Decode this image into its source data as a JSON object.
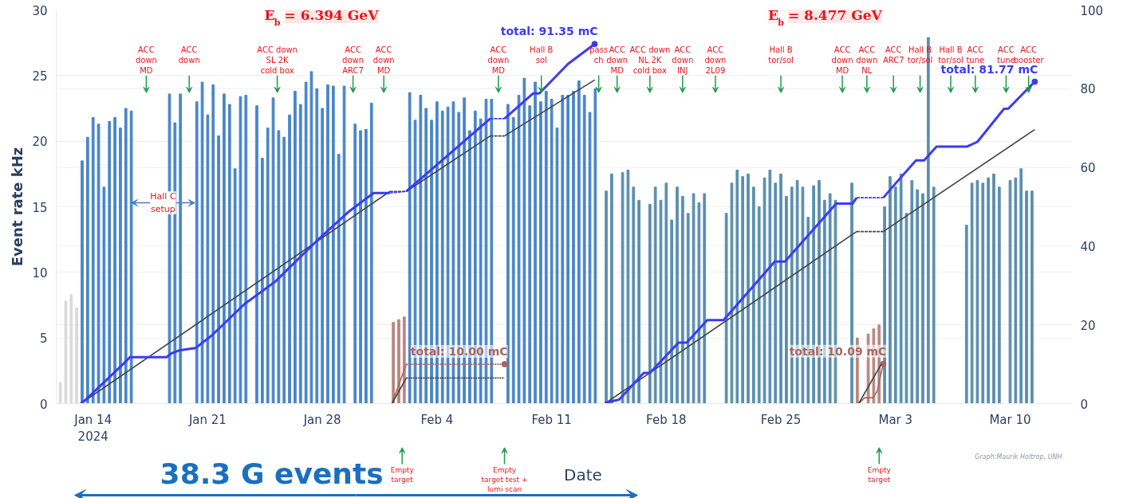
{
  "chart_data": {
    "type": "bar",
    "xlabel": "Date",
    "ylabel": "Event rate kHz",
    "xlim": [
      "2024-01-11T18:00",
      "2024-03-13T18:00"
    ],
    "xticks": [
      {
        "value": "2024-01-14",
        "label": "Jan 14\n2024"
      },
      {
        "value": "2024-01-21",
        "label": "Jan 21"
      },
      {
        "value": "2024-01-28",
        "label": "Jan 28"
      },
      {
        "value": "2024-02-04",
        "label": "Feb 4"
      },
      {
        "value": "2024-02-11",
        "label": "Feb 11"
      },
      {
        "value": "2024-02-18",
        "label": "Feb 18"
      },
      {
        "value": "2024-02-25",
        "label": "Feb 25"
      },
      {
        "value": "2024-03-03",
        "label": "Mar 3"
      },
      {
        "value": "2024-03-10",
        "label": "Mar 10"
      }
    ],
    "ylim": [
      0,
      30
    ],
    "yticks": [
      0,
      5,
      10,
      15,
      20,
      25,
      30
    ],
    "y2lim": [
      0,
      100
    ],
    "y2ticks": [
      0,
      20,
      40,
      60,
      80,
      100
    ],
    "grid": "y",
    "series": [
      {
        "color": "#d9d9d9",
        "x": [
          "2024-01-12T00:00",
          "2024-01-12T08:00",
          "2024-01-12T16:00",
          "2024-01-13T00:00"
        ],
        "values": [
          1.6,
          7.8,
          8.3,
          7.3
        ]
      },
      {
        "color": "#4a86c8",
        "x": [
          "2024-01-13T08:00",
          "2024-01-13T16:00",
          "2024-01-14T00:00",
          "2024-01-14T08:00",
          "2024-01-14T16:00",
          "2024-01-15T00:00",
          "2024-01-15T08:00",
          "2024-01-15T16:00",
          "2024-01-16T00:00",
          "2024-01-16T08:00",
          "2024-01-18T16:00",
          "2024-01-19T00:00",
          "2024-01-19T08:00",
          "2024-01-20T08:00",
          "2024-01-20T16:00",
          "2024-01-21T00:00",
          "2024-01-21T08:00",
          "2024-01-21T16:00",
          "2024-01-22T00:00",
          "2024-01-22T08:00",
          "2024-01-22T16:00",
          "2024-01-23T00:00",
          "2024-01-23T08:00",
          "2024-01-24T00:00",
          "2024-01-24T08:00",
          "2024-01-24T16:00",
          "2024-01-25T00:00",
          "2024-01-25T08:00",
          "2024-01-25T16:00",
          "2024-01-26T00:00",
          "2024-01-26T08:00",
          "2024-01-26T16:00",
          "2024-01-27T00:00",
          "2024-01-27T08:00",
          "2024-01-27T16:00",
          "2024-01-28T00:00",
          "2024-01-28T08:00",
          "2024-01-28T16:00",
          "2024-01-29T00:00",
          "2024-01-29T08:00",
          "2024-01-30T00:00",
          "2024-01-30T08:00",
          "2024-01-30T16:00",
          "2024-01-31T00:00",
          "2024-02-02T08:00",
          "2024-02-02T16:00",
          "2024-02-03T00:00",
          "2024-02-03T08:00",
          "2024-02-03T16:00",
          "2024-02-04T00:00",
          "2024-02-04T08:00",
          "2024-02-04T16:00",
          "2024-02-05T00:00",
          "2024-02-05T08:00",
          "2024-02-05T16:00",
          "2024-02-06T00:00",
          "2024-02-06T08:00",
          "2024-02-06T16:00",
          "2024-02-07T00:00",
          "2024-02-07T08:00",
          "2024-02-08T08:00",
          "2024-02-08T16:00",
          "2024-02-09T00:00",
          "2024-02-09T08:00",
          "2024-02-09T16:00",
          "2024-02-10T00:00",
          "2024-02-10T08:00",
          "2024-02-10T16:00",
          "2024-02-11T00:00",
          "2024-02-11T08:00",
          "2024-02-11T16:00",
          "2024-02-12T00:00",
          "2024-02-12T08:00",
          "2024-02-12T16:00",
          "2024-02-13T00:00",
          "2024-02-13T08:00",
          "2024-02-13T16:00"
        ],
        "values": [
          18.5,
          20.3,
          21.8,
          21.3,
          16.5,
          21.5,
          21.8,
          21.0,
          22.5,
          22.3,
          23.6,
          21.4,
          23.6,
          23.0,
          24.5,
          22.0,
          24.3,
          20.4,
          23.6,
          22.8,
          17.9,
          23.4,
          23.5,
          22.7,
          18.7,
          21.0,
          23.3,
          20.8,
          20.3,
          22.0,
          23.8,
          22.8,
          24.5,
          25.3,
          24.0,
          22.5,
          24.3,
          24.2,
          19.0,
          24.2,
          21.3,
          20.8,
          20.9,
          22.9,
          23.7,
          21.6,
          23.5,
          22.5,
          21.6,
          23.0,
          22.3,
          22.6,
          23.0,
          22.2,
          23.3,
          20.8,
          22.3,
          21.7,
          23.2,
          23.2,
          22.8,
          21.8,
          23.5,
          24.8,
          22.7,
          24.5,
          23.0,
          23.8,
          23.2,
          21.0,
          23.5,
          23.5,
          23.8,
          24.6,
          23.5,
          22.2,
          24.0
        ]
      },
      {
        "color": "#b98780",
        "x": [
          "2024-02-01T08:00",
          "2024-02-01T16:00",
          "2024-02-02T00:00",
          "2024-02-29T16:00",
          "2024-03-01T08:00",
          "2024-03-01T16:00",
          "2024-03-02T00:00"
        ],
        "values": [
          6.2,
          6.4,
          6.6,
          5.0,
          5.3,
          5.7,
          6.0
        ]
      },
      {
        "color": "#5b8fb0",
        "x": [
          "2024-02-14T08:00",
          "2024-02-14T16:00",
          "2024-02-15T08:00",
          "2024-02-15T16:00",
          "2024-02-16T00:00",
          "2024-02-16T08:00",
          "2024-02-17T00:00",
          "2024-02-17T08:00",
          "2024-02-17T16:00",
          "2024-02-18T00:00",
          "2024-02-18T08:00",
          "2024-02-18T16:00",
          "2024-02-19T00:00",
          "2024-02-19T08:00",
          "2024-02-19T16:00",
          "2024-02-20T00:00",
          "2024-02-20T08:00",
          "2024-02-21T16:00",
          "2024-02-22T00:00",
          "2024-02-22T08:00",
          "2024-02-22T16:00",
          "2024-02-23T00:00",
          "2024-02-23T08:00",
          "2024-02-23T16:00",
          "2024-02-24T00:00",
          "2024-02-24T08:00",
          "2024-02-24T16:00",
          "2024-02-25T00:00",
          "2024-02-25T08:00",
          "2024-02-25T16:00",
          "2024-02-26T00:00",
          "2024-02-26T08:00",
          "2024-02-26T16:00",
          "2024-02-27T00:00",
          "2024-02-27T08:00",
          "2024-02-27T16:00",
          "2024-02-28T00:00",
          "2024-02-28T08:00",
          "2024-02-29T08:00",
          "2024-03-02T08:00",
          "2024-03-02T16:00",
          "2024-03-03T00:00",
          "2024-03-03T08:00",
          "2024-03-03T16:00",
          "2024-03-04T00:00",
          "2024-03-04T08:00",
          "2024-03-04T16:00",
          "2024-03-05T00:00",
          "2024-03-05T08:00",
          "2024-03-07T08:00",
          "2024-03-07T16:00",
          "2024-03-08T00:00",
          "2024-03-08T08:00",
          "2024-03-08T16:00",
          "2024-03-09T00:00",
          "2024-03-09T08:00",
          "2024-03-10T00:00",
          "2024-03-10T08:00",
          "2024-03-10T16:00",
          "2024-03-11T00:00",
          "2024-03-11T08:00"
        ],
        "values": [
          16.2,
          17.5,
          17.6,
          17.8,
          16.5,
          15.5,
          15.2,
          16.5,
          15.5,
          16.8,
          14.0,
          16.5,
          15.8,
          14.5,
          16.0,
          15.3,
          16.0,
          14.5,
          16.8,
          17.8,
          17.3,
          17.5,
          16.5,
          15.0,
          17.2,
          17.8,
          16.8,
          17.5,
          15.8,
          16.5,
          17.0,
          16.5,
          14.2,
          16.6,
          17.0,
          15.5,
          16.0,
          15.5,
          16.8,
          15.0,
          17.3,
          16.5,
          17.5,
          14.5,
          17.0,
          16.3,
          16.0,
          27.9,
          16.5,
          13.6,
          16.8,
          17.0,
          16.8,
          17.2,
          17.5,
          16.5,
          17.0,
          17.2,
          17.9,
          16.2,
          16.2
        ]
      },
      {
        "type": "line",
        "axis": "y2",
        "color": "#444444",
        "line_style": "solid",
        "x": [
          "2024-01-13T06:00",
          "2024-02-01T03:00"
        ],
        "values": [
          0,
          53.9
        ]
      },
      {
        "type": "line",
        "axis": "y2",
        "color": "#444444",
        "line_style": "solid",
        "x": [
          "2024-02-02T03:00",
          "2024-02-07T06:00"
        ],
        "values": [
          53.9,
          68.0
        ]
      },
      {
        "type": "line",
        "axis": "y2",
        "color": "#444444",
        "line_style": "solid",
        "x": [
          "2024-02-08T03:00",
          "2024-02-13T15:00"
        ],
        "values": [
          68.0,
          82.2
        ]
      },
      {
        "type": "line",
        "axis": "y2",
        "color": "#3b3bf5",
        "line_style": "solid",
        "x": [
          "2024-01-13T06:00",
          "2024-01-13T12:00",
          "2024-01-15T21:00",
          "2024-01-16T06:00",
          "2024-01-18T12:00",
          "2024-01-18T18:00",
          "2024-01-19T06:00",
          "2024-01-20T06:00",
          "2024-01-21T06:00",
          "2024-01-23T06:00",
          "2024-01-25T03:00",
          "2024-01-27T15:00",
          "2024-01-29T15:00",
          "2024-01-31T03:00",
          "2024-02-01T03:00"
        ],
        "values": [
          0,
          0.8,
          10.2,
          11.8,
          11.8,
          12.7,
          13.5,
          14.1,
          17.3,
          25.3,
          31.0,
          41.2,
          48.8,
          53.5,
          53.5
        ]
      },
      {
        "type": "line",
        "axis": "y2",
        "color": "#3b3bf5",
        "line_style": "dashed",
        "x": [
          "2024-02-01T03:00",
          "2024-02-02T03:00"
        ],
        "values": [
          53.5,
          53.9
        ]
      },
      {
        "type": "line",
        "axis": "y2",
        "color": "#3b3bf5",
        "line_style": "solid",
        "x": [
          "2024-02-02T03:00",
          "2024-02-07T06:00"
        ],
        "values": [
          53.9,
          72.4
        ]
      },
      {
        "type": "line",
        "axis": "y2",
        "color": "#3b3bf5",
        "line_style": "dashed",
        "x": [
          "2024-02-07T06:00",
          "2024-02-08T03:00"
        ],
        "values": [
          72.4,
          72.4
        ]
      },
      {
        "type": "line",
        "axis": "y2",
        "color": "#3b3bf5",
        "line_style": "solid",
        "x": [
          "2024-02-08T03:00",
          "2024-02-09T21:00",
          "2024-02-10T06:00",
          "2024-02-12T00:00",
          "2024-02-13T15:00"
        ],
        "values": [
          72.4,
          78.8,
          78.8,
          86.3,
          91.35
        ],
        "value_labels": [
          null,
          null,
          null,
          null,
          "total: 91.35 mC"
        ]
      },
      {
        "type": "line",
        "axis": "y2",
        "color": "#444444",
        "line_style": "dashed",
        "x": [
          "2024-02-01T03:00",
          "2024-02-02T03:00"
        ],
        "values": [
          53.9,
          53.9
        ]
      },
      {
        "type": "line",
        "axis": "y2",
        "color": "#444444",
        "line_style": "dashed",
        "x": [
          "2024-02-07T06:00",
          "2024-02-08T03:00"
        ],
        "values": [
          68.0,
          68.0
        ]
      },
      {
        "type": "line",
        "axis": "y2",
        "color": "#444444",
        "line_style": "solid",
        "x": [
          "2024-02-14T06:00",
          "2024-02-29T15:00"
        ],
        "values": [
          0,
          43.7
        ]
      },
      {
        "type": "line",
        "axis": "y2",
        "color": "#444444",
        "line_style": "dashed",
        "x": [
          "2024-02-29T15:00",
          "2024-03-02T06:00"
        ],
        "values": [
          43.7,
          43.7
        ]
      },
      {
        "type": "line",
        "axis": "y2",
        "color": "#444444",
        "line_style": "solid",
        "x": [
          "2024-03-02T06:00",
          "2024-03-11T12:00"
        ],
        "values": [
          43.7,
          69.6
        ]
      },
      {
        "type": "line",
        "axis": "y2",
        "color": "#3b3bf5",
        "line_style": "solid",
        "x": [
          "2024-02-14T06:00",
          "2024-02-15T03:00",
          "2024-02-16T15:00",
          "2024-02-17T00:00",
          "2024-02-18T18:00",
          "2024-02-19T06:00",
          "2024-02-20T12:00",
          "2024-02-21T12:00",
          "2024-02-24T15:00",
          "2024-02-25T06:00",
          "2024-02-28T09:00",
          "2024-02-29T09:00",
          "2024-02-29T15:00"
        ],
        "values": [
          0.2,
          1.0,
          7.8,
          7.8,
          15.5,
          15.5,
          21.2,
          21.2,
          36.1,
          36.1,
          50.8,
          50.8,
          52.3
        ]
      },
      {
        "type": "line",
        "axis": "y2",
        "color": "#3b3bf5",
        "line_style": "dashed",
        "x": [
          "2024-02-29T15:00",
          "2024-03-02T06:00"
        ],
        "values": [
          52.3,
          52.3
        ]
      },
      {
        "type": "line",
        "axis": "y2",
        "color": "#3b3bf5",
        "line_style": "solid",
        "x": [
          "2024-03-02T06:00",
          "2024-03-03T03:00",
          "2024-03-04T06:00",
          "2024-03-04T18:00",
          "2024-03-05T12:00",
          "2024-03-07T09:00",
          "2024-03-08T00:00",
          "2024-03-09T15:00",
          "2024-03-09T21:00",
          "2024-03-11T12:00"
        ],
        "values": [
          52.3,
          56.5,
          61.8,
          61.8,
          65.3,
          65.3,
          66.5,
          74.9,
          74.9,
          81.77
        ],
        "value_labels": [
          null,
          null,
          null,
          null,
          null,
          null,
          null,
          null,
          null,
          "total: 81.77 mC"
        ]
      },
      {
        "type": "line",
        "axis": "y2",
        "color": "#a8655f",
        "line_style": "solid",
        "x": [
          "2024-02-01T06:00",
          "2024-02-02T03:00"
        ],
        "values": [
          0,
          10.0
        ]
      },
      {
        "type": "line",
        "axis": "y2",
        "color": "#a8655f",
        "line_style": "dotted",
        "x": [
          "2024-02-02T03:00",
          "2024-02-08T03:00"
        ],
        "values": [
          10.0,
          10.0
        ],
        "value_labels": [
          null,
          "total: 10.00 mC"
        ]
      },
      {
        "type": "line",
        "axis": "y2",
        "color": "#444444",
        "line_style": "solid",
        "x": [
          "2024-02-01T06:00",
          "2024-02-02T03:00"
        ],
        "values": [
          0,
          6.5
        ]
      },
      {
        "type": "line",
        "axis": "y2",
        "color": "#444444",
        "line_style": "dotted",
        "x": [
          "2024-02-02T03:00",
          "2024-02-08T03:00"
        ],
        "values": [
          6.5,
          6.5
        ]
      },
      {
        "type": "line",
        "axis": "y2",
        "color": "#a8655f",
        "line_style": "solid",
        "x": [
          "2024-02-29T18:00",
          "2024-03-01T03:00",
          "2024-03-01T15:00",
          "2024-03-01T21:00",
          "2024-03-02T06:00"
        ],
        "values": [
          0,
          1.5,
          1.5,
          3.1,
          10.09
        ],
        "value_labels": [
          null,
          null,
          null,
          null,
          "total: 10.09 mC"
        ]
      },
      {
        "type": "line",
        "axis": "y2",
        "color": "#444444",
        "line_style": "solid",
        "x": [
          "2024-02-29T18:00",
          "2024-03-02T03:00"
        ],
        "values": [
          0,
          10.0
        ]
      }
    ],
    "annotations": [
      "E$_{b}$ = 6.394 GeV",
      "E$_{b}$ = 8.477 GeV",
      "ACC\ndown\nMD",
      "ACC\ndown",
      "ACC down\nSL 2K\ncold box",
      "ACC\ndown\nARC7",
      "ACC\ndown\nMD",
      "ACC\ndown\nMD",
      "Hall B\nsol",
      "pass\nch",
      "ACC\ndown\nMD",
      "ACC down\nNL 2K\ncold box",
      "ACC\ndown\nINJ",
      "ACC\ndown\n2L09",
      "Hall B\ntor/sol",
      "ACC\ndown\nMD",
      "ACC\ndown\nNL",
      "ACC\nARC7",
      "Hall B\ntor/sol",
      "Hall B\ntor/sol",
      "ACC\ntune",
      "ACC\ntune",
      "ACC\nbooster",
      "Empty\ntarget",
      "Empty\ntarget test +\nlumi scan",
      "Empty\ntarget",
      {
        "text": "Hall C\nsetup",
        "x": "2024-01-16T08:00",
        "y": 15.3
      },
      "38.3 G events",
      "Graph:Maurik Holtrop, UNH"
    ]
  }
}
